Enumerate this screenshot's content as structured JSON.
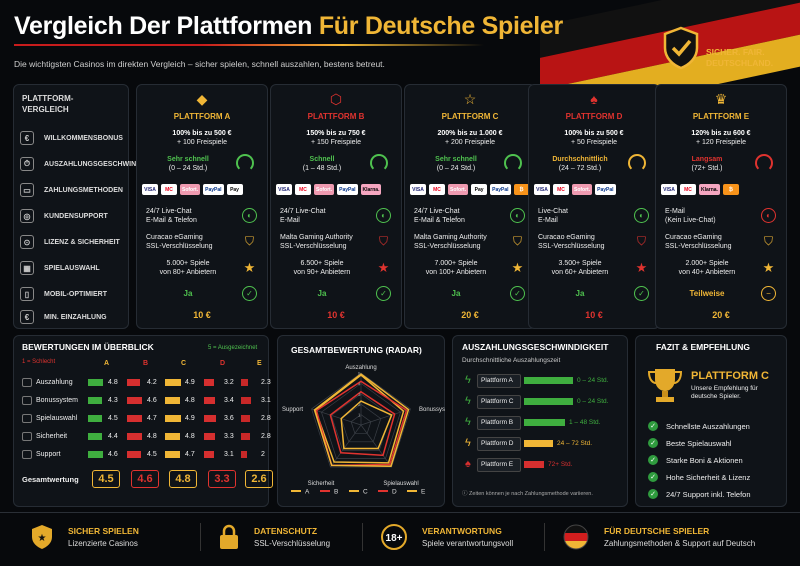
{
  "header": {
    "title_part1": "Vergleich Der Plattformen ",
    "title_part2": "Für Deutsche Spieler",
    "subtitle": "Die wichtigsten Casinos im direkten Vergleich – sicher spielen, schnell auszahlen, bestens betreut.",
    "badge": [
      "SICHER. FAIR.",
      "DEUTSCHLAND."
    ]
  },
  "table": {
    "head": [
      "PLATTFORM-",
      "VERGLEICH"
    ],
    "rows": [
      "WILLKOMMENSBONUS",
      "AUSZAHLUNGSGESCHWINDIGKEIT",
      "ZAHLUNGSMETHODEN",
      "KUNDENSUPPORT",
      "LIZENZ & SICHERHEIT",
      "SPIELAUSWAHL",
      "MOBIL-OPTIMIERT",
      "MIN. EINZAHLUNG"
    ],
    "platforms": [
      {
        "name": "PLATTFORM A",
        "color": "#f0b636",
        "icon": "diamond-logo-icon",
        "bonus1": "100% bis zu 500 €",
        "bonus2": "+ 100 Freispiele",
        "speed1": "Sehr schnell",
        "speed2": "(0 – 24 Std.)",
        "speedColor": "#4fc24f",
        "pay": [
          "VISA",
          "MC",
          "Sofort.",
          "PayPal",
          "Pay"
        ],
        "support1": "24/7 Live-Chat",
        "support2": "E-Mail & Telefon",
        "lic1": "Curacao eGaming",
        "lic2": "SSL-Verschlüsselung",
        "games1": "5.000+ Spiele",
        "games2": "von 80+ Anbietern",
        "mobile": "Ja",
        "mobileColor": "#4fc24f",
        "deposit": "10 €"
      },
      {
        "name": "PLATTFORM B",
        "color": "#e0332f",
        "icon": "hexagon-logo-icon",
        "bonus1": "150% bis zu 750 €",
        "bonus2": "+ 150 Freispiele",
        "speed1": "Schnell",
        "speed2": "(1 – 48 Std.)",
        "speedColor": "#4fc24f",
        "pay": [
          "VISA",
          "MC",
          "Sofort.",
          "PayPal",
          "Klarna."
        ],
        "support1": "24/7 Live-Chat",
        "support2": "E-Mail",
        "lic1": "Malta Gaming Authority",
        "lic2": "SSL-Verschlüsselung",
        "games1": "6.500+ Spiele",
        "games2": "von 90+ Anbietern",
        "mobile": "Ja",
        "mobileColor": "#4fc24f",
        "deposit": "10 €"
      },
      {
        "name": "PLATTFORM C",
        "color": "#f0b636",
        "icon": "star-logo-icon",
        "bonus1": "200% bis zu 1.000 €",
        "bonus2": "+ 200 Freispiele",
        "speed1": "Sehr schnell",
        "speed2": "(0 – 24 Std.)",
        "speedColor": "#4fc24f",
        "pay": [
          "VISA",
          "MC",
          "Sofort.",
          "Pay",
          "PayPal",
          "₿"
        ],
        "support1": "24/7 Live-Chat",
        "support2": "E-Mail & Telefon",
        "lic1": "Malta Gaming Authority",
        "lic2": "SSL-Verschlüsselung",
        "games1": "7.000+ Spiele",
        "games2": "von 100+ Anbietern",
        "mobile": "Ja",
        "mobileColor": "#4fc24f",
        "deposit": "20 €"
      },
      {
        "name": "PLATTFORM D",
        "color": "#e0332f",
        "icon": "spade-logo-icon",
        "bonus1": "100% bis zu 500 €",
        "bonus2": "+ 50 Freispiele",
        "speed1": "Durchschnittlich",
        "speed2": "(24 – 72 Std.)",
        "speedColor": "#f0b636",
        "pay": [
          "VISA",
          "MC",
          "Sofort.",
          "PayPal"
        ],
        "support1": "Live-Chat",
        "support2": "E-Mail",
        "lic1": "Curacao eGaming",
        "lic2": "SSL-Verschlüsselung",
        "games1": "3.500+ Spiele",
        "games2": "von 60+ Anbietern",
        "mobile": "Ja",
        "mobileColor": "#4fc24f",
        "deposit": "10 €"
      },
      {
        "name": "PLATTFORM E",
        "color": "#f0b636",
        "icon": "crown-logo-icon",
        "bonus1": "120% bis zu 600 €",
        "bonus2": "+ 120 Freispiele",
        "speed1": "Langsam",
        "speed2": "(72+ Std.)",
        "speedColor": "#e0332f",
        "pay": [
          "VISA",
          "MC",
          "Klarna.",
          "₿"
        ],
        "support1": "E-Mail",
        "support2": "(Kein Live-Chat)",
        "lic1": "Curacao eGaming",
        "lic2": "SSL-Verschlüsselung",
        "games1": "2.000+ Spiele",
        "games2": "von 40+ Anbietern",
        "mobile": "Teilweise",
        "mobileColor": "#f0b636",
        "deposit": "20 €"
      }
    ]
  },
  "ratings": {
    "title": "BEWERTUNGEN IM ÜBERBLICK",
    "legend_low": "1 = Schlecht",
    "legend_high": "5 = Ausgezeichnet",
    "cols": [
      "A",
      "B",
      "C",
      "D",
      "E"
    ],
    "colColors": [
      "#f0b636",
      "#e0332f",
      "#f0b636",
      "#e0332f",
      "#f0b636"
    ],
    "cats": [
      "Auszahlung",
      "Bonussystem",
      "Spielauswahl",
      "Sicherheit",
      "Support"
    ],
    "values": [
      [
        4.8,
        4.2,
        4.9,
        3.2,
        2.3
      ],
      [
        4.3,
        4.6,
        4.8,
        3.4,
        3.1
      ],
      [
        4.5,
        4.7,
        4.9,
        3.6,
        2.8
      ],
      [
        4.4,
        4.8,
        4.8,
        3.3,
        2.8
      ],
      [
        4.6,
        4.5,
        4.7,
        3.1,
        2.0
      ]
    ],
    "total_label": "Gesamtwertung",
    "totals": [
      "4.5",
      "4.6",
      "4.8",
      "3.3",
      "2.6"
    ]
  },
  "radar": {
    "title": "GESAMTBEWERTUNG (RADAR)",
    "axes": [
      "Auszahlung",
      "Bonussystem",
      "Spielauswahl",
      "Sicherheit",
      "Support"
    ],
    "ticks": [
      "1",
      "2",
      "3",
      "4",
      "5"
    ],
    "legend": [
      "A",
      "B",
      "C",
      "D",
      "E"
    ]
  },
  "speedchart": {
    "title": "AUSZAHLUNGSGESCHWINDIGKEIT",
    "subtitle": "Durchschnittliche Auszahlungszeit",
    "note": "Zeiten können je nach Zahlungsmethode variieren.",
    "items": [
      {
        "name": "Plattform A",
        "label": "0 – 24 Std.",
        "frac": 0.82,
        "color": "#3fae3f"
      },
      {
        "name": "Plattform C",
        "label": "0 – 24 Std.",
        "frac": 0.82,
        "color": "#3fae3f"
      },
      {
        "name": "Plattform B",
        "label": "1 – 48 Std.",
        "frac": 0.68,
        "color": "#3fae3f"
      },
      {
        "name": "Plattform D",
        "label": "24 – 72 Std.",
        "frac": 0.48,
        "color": "#f0b636"
      },
      {
        "name": "Plattform E",
        "label": "72+ Std.",
        "frac": 0.34,
        "color": "#d62f2f"
      }
    ]
  },
  "fazit": {
    "title": "FAZIT & EMPFEHLUNG",
    "winner": "PLATTFORM C",
    "winner_sub": "Unsere Empfehlung für deutsche Spieler.",
    "points": [
      "Schnellste Auszahlungen",
      "Beste Spielauswahl",
      "Starke Boni & Aktionen",
      "Hohe Sicherheit & Lizenz",
      "24/7 Support inkl. Telefon"
    ]
  },
  "footer": [
    {
      "t1": "SICHER SPIELEN",
      "t2": "Lizenzierte Casinos",
      "icon": "shield-star-icon"
    },
    {
      "t1": "DATENSCHUTZ",
      "t2": "SSL-Verschlüsselung",
      "icon": "lock-icon"
    },
    {
      "t1": "VERANTWORTUNG",
      "t2": "Spiele verantwortungsvoll",
      "icon": "age-18-icon"
    },
    {
      "t1": "FÜR DEUTSCHE SPIELER",
      "t2": "Zahlungsmethoden & Support auf Deutsch",
      "icon": "german-flag-icon"
    }
  ]
}
